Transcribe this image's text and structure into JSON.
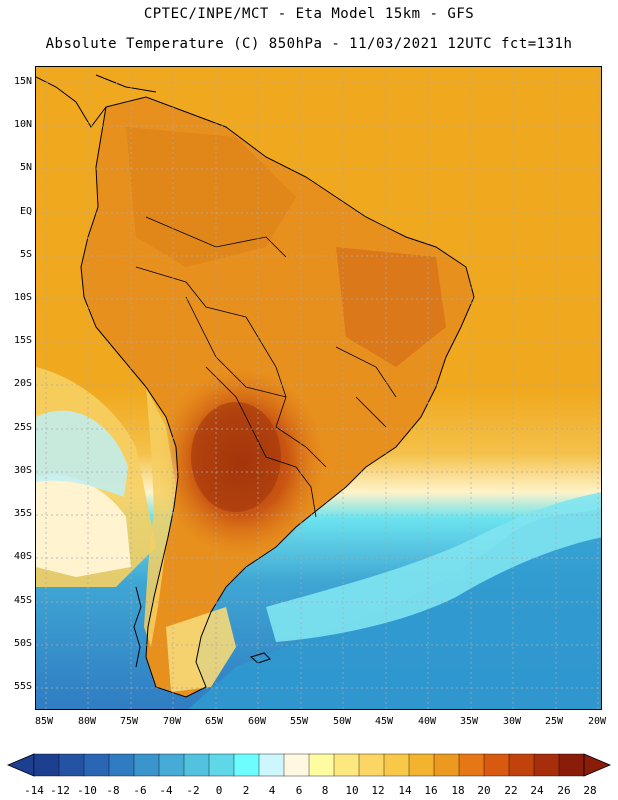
{
  "header": {
    "line1": "CPTEC/INPE/MCT -  Eta Model 15km - GFS",
    "line2": "Absolute Temperature (C) 850hPa - 11/03/2021 12UTC fct=131h"
  },
  "map": {
    "variable": "Absolute Temperature (C) 850hPa",
    "region": "South America",
    "lat_labels": [
      "15N",
      "10N",
      "5N",
      "EQ",
      "5S",
      "10S",
      "15S",
      "20S",
      "25S",
      "30S",
      "35S",
      "40S",
      "45S",
      "50S",
      "55S"
    ],
    "lon_labels": [
      "85W",
      "80W",
      "75W",
      "70W",
      "65W",
      "60W",
      "55W",
      "50W",
      "45W",
      "40W",
      "35W",
      "30W",
      "25W",
      "20W"
    ]
  },
  "colorbar": {
    "labels": [
      "-14",
      "-12",
      "-10",
      "-8",
      "-6",
      "-4",
      "-2",
      "0",
      "2",
      "4",
      "6",
      "8",
      "10",
      "12",
      "14",
      "16",
      "18",
      "20",
      "22",
      "24",
      "26",
      "28"
    ],
    "colors": [
      "#1d3f8f",
      "#2553a3",
      "#2a66b4",
      "#2f7cc2",
      "#3a95cc",
      "#46abd6",
      "#52c3de",
      "#5ed8e8",
      "#6dfcff",
      "#cdf6ff",
      "#fff8e1",
      "#fffba0",
      "#fde77f",
      "#fbd665",
      "#f8c948",
      "#f3b32f",
      "#eb9a1f",
      "#e67716",
      "#d75a10",
      "#c2420c",
      "#a72e0a",
      "#8a1c0a"
    ]
  },
  "colors": {
    "warm_ocean": "#f0a81e",
    "land_warm": "#e8901d",
    "hot_core": "#b8460f",
    "cold_ocean": "#2f7cc2",
    "coastline": "#000000",
    "grid": "#aaaaaa"
  }
}
